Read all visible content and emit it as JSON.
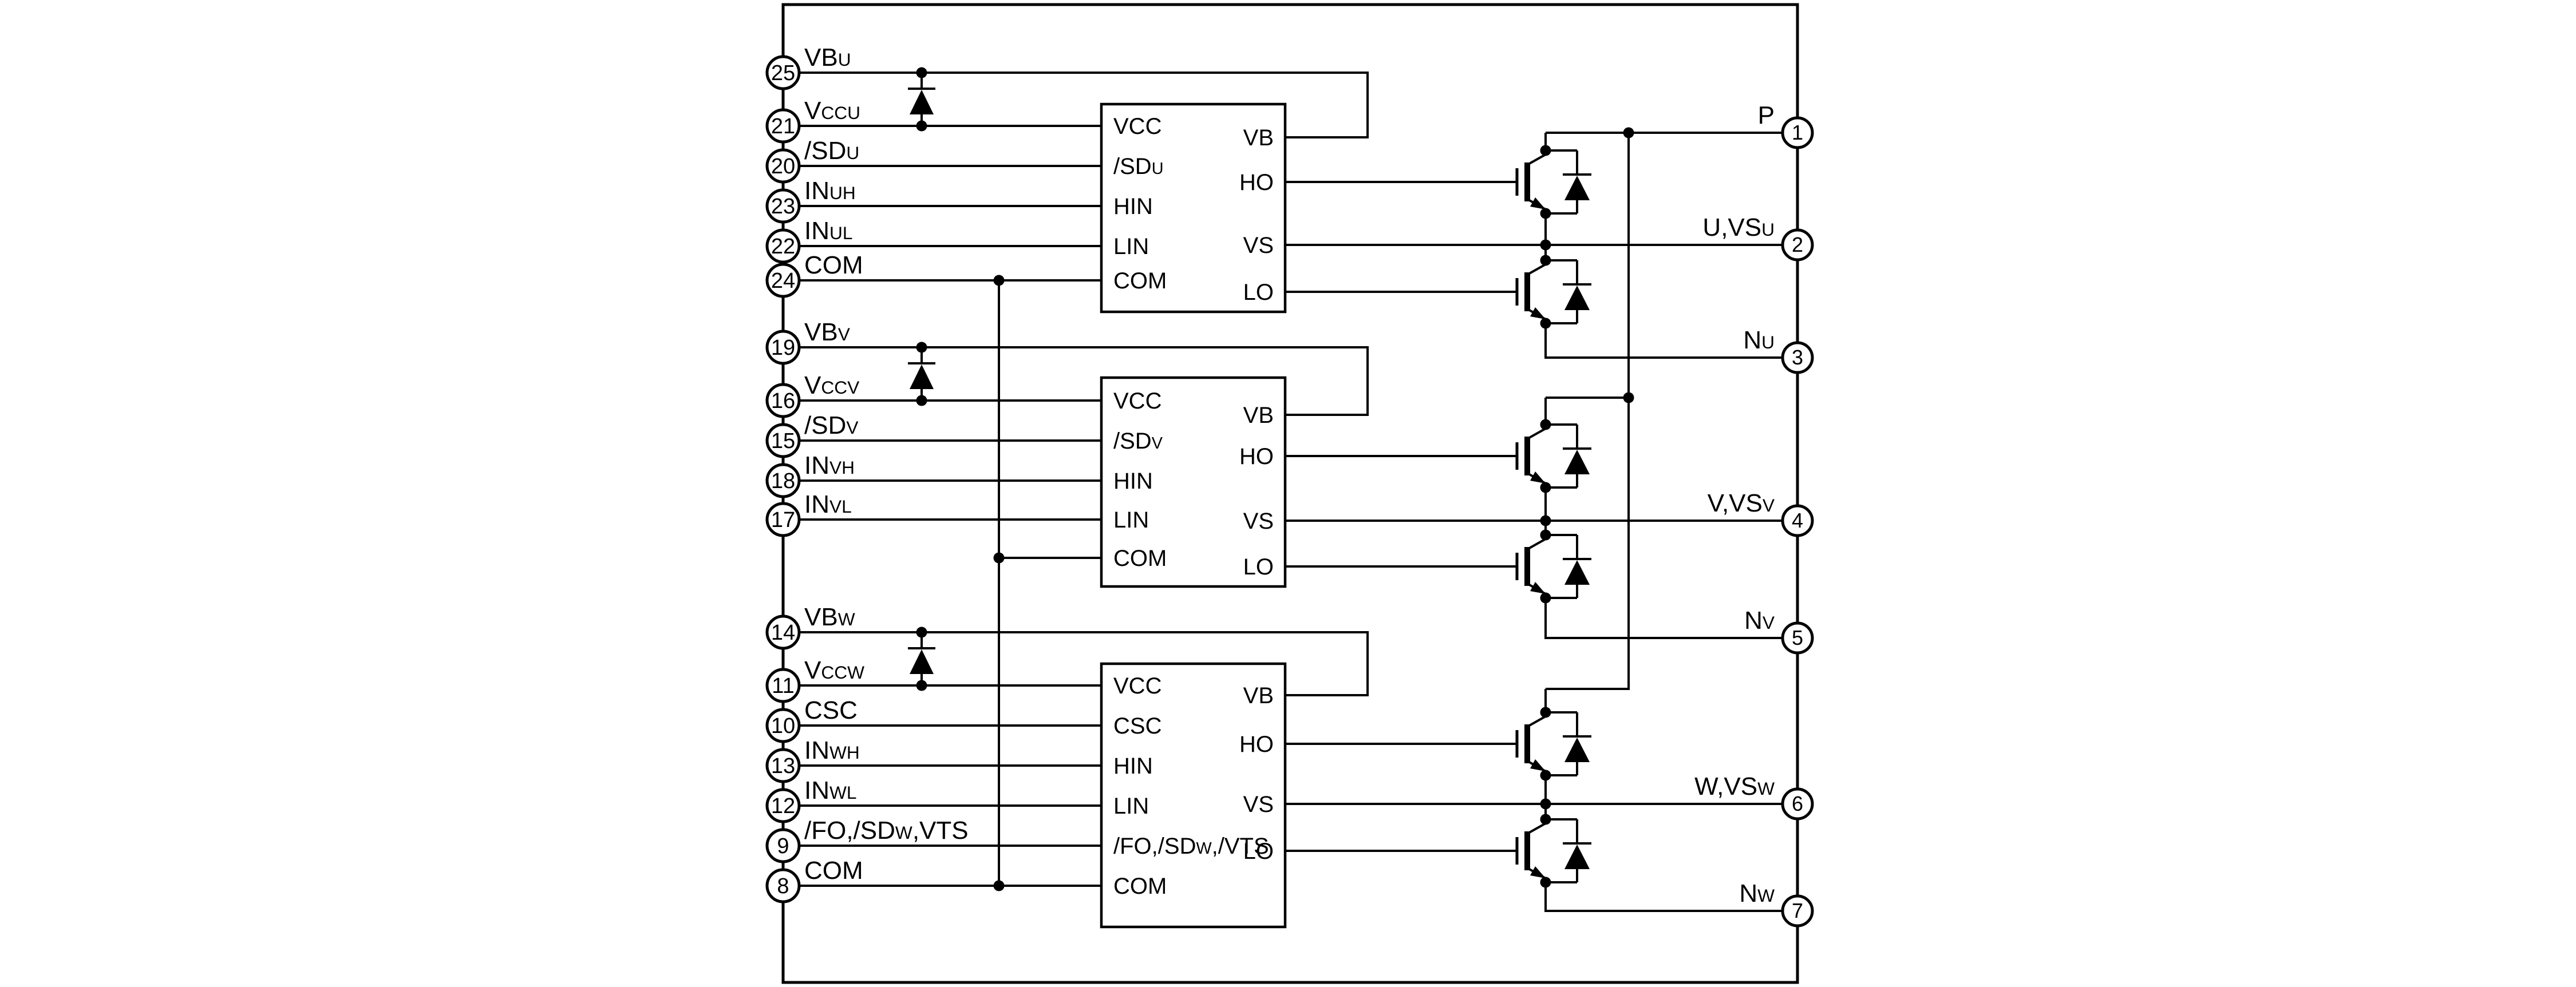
{
  "diagram": {
    "type": "power-module-block-schematic",
    "colors": {
      "line": "#000000",
      "background": "#ffffff"
    },
    "left_pins": [
      {
        "num": "25",
        "label": "VB~U~"
      },
      {
        "num": "21",
        "label": "V~CCU~"
      },
      {
        "num": "20",
        "label": "/SD~U~"
      },
      {
        "num": "23",
        "label": "IN~UH~"
      },
      {
        "num": "22",
        "label": "IN~UL~"
      },
      {
        "num": "24",
        "label": "COM"
      },
      {
        "num": "19",
        "label": "VB~V~"
      },
      {
        "num": "16",
        "label": "V~CCV~"
      },
      {
        "num": "15",
        "label": "/SD~V~"
      },
      {
        "num": "18",
        "label": "IN~VH~"
      },
      {
        "num": "17",
        "label": "IN~VL~"
      },
      {
        "num": "14",
        "label": "VB~W~"
      },
      {
        "num": "11",
        "label": "V~CCW~"
      },
      {
        "num": "10",
        "label": "CSC"
      },
      {
        "num": "13",
        "label": "IN~WH~"
      },
      {
        "num": "12",
        "label": "IN~WL~"
      },
      {
        "num": "9",
        "label": "/FO,/SD~W~,VTS"
      },
      {
        "num": "8",
        "label": "COM"
      }
    ],
    "right_pins": [
      {
        "num": "1",
        "label": "P"
      },
      {
        "num": "2",
        "label": "U,VS~U~"
      },
      {
        "num": "3",
        "label": "N~U~"
      },
      {
        "num": "4",
        "label": "V,VS~V~"
      },
      {
        "num": "5",
        "label": "N~V~"
      },
      {
        "num": "6",
        "label": "W,VS~W~"
      },
      {
        "num": "7",
        "label": "N~W~"
      }
    ],
    "blocks": [
      {
        "name": "gate-driver-u",
        "left": [
          "VCC",
          "/SD~U~",
          "HIN",
          "LIN",
          "COM"
        ],
        "right": [
          "VB",
          "HO",
          "VS",
          "LO"
        ]
      },
      {
        "name": "gate-driver-v",
        "left": [
          "VCC",
          "/SD~V~",
          "HIN",
          "LIN",
          "COM"
        ],
        "right": [
          "VB",
          "HO",
          "VS",
          "LO"
        ]
      },
      {
        "name": "gate-driver-w",
        "left": [
          "VCC",
          "CSC",
          "HIN",
          "LIN",
          "/FO,/SD~W~,/VTS",
          "COM"
        ],
        "right": [
          "VB",
          "HO",
          "VS",
          "LO"
        ]
      }
    ]
  }
}
